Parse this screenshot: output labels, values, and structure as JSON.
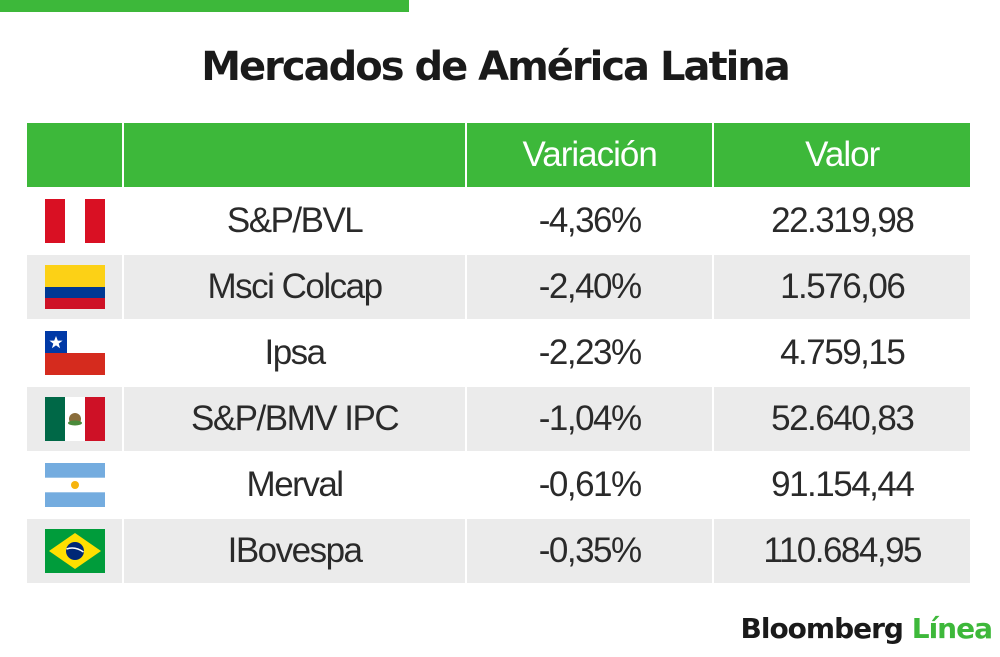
{
  "title": "Mercados de América Latina",
  "colors": {
    "accent": "#3db83a",
    "row_alt": "#ebebeb"
  },
  "table": {
    "headers": [
      "",
      "",
      "Variación",
      "Valor"
    ],
    "rows": [
      {
        "flag_icon": "peru-flag-icon",
        "name": "S&P/BVL",
        "variation": "-4,36%",
        "value": "22.319,98"
      },
      {
        "flag_icon": "colombia-flag-icon",
        "name": "Msci Colcap",
        "variation": "-2,40%",
        "value": "1.576,06"
      },
      {
        "flag_icon": "chile-flag-icon",
        "name": "Ipsa",
        "variation": "-2,23%",
        "value": "4.759,15"
      },
      {
        "flag_icon": "mexico-flag-icon",
        "name": "S&P/BMV IPC",
        "variation": "-1,04%",
        "value": "52.640,83"
      },
      {
        "flag_icon": "argentina-flag-icon",
        "name": "Merval",
        "variation": "-0,61%",
        "value": "91.154,44"
      },
      {
        "flag_icon": "brazil-flag-icon",
        "name": "IBovespa",
        "variation": "-0,35%",
        "value": "110.684,95"
      }
    ]
  },
  "brand": {
    "part1": "Bloomberg",
    "part2": "Línea"
  }
}
